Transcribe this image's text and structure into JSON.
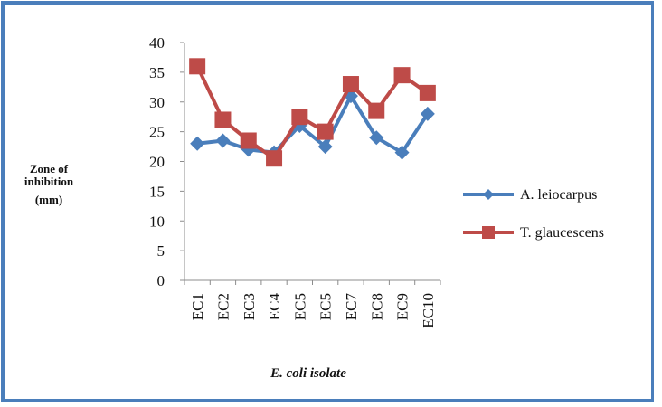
{
  "chart_data": {
    "type": "line",
    "categories": [
      "EC1",
      "EC2",
      "EC3",
      "EC4",
      "EC5",
      "EC5",
      "EC7",
      "EC8",
      "EC9",
      "EC10"
    ],
    "series": [
      {
        "name": "A. leiocarpus",
        "values": [
          23,
          23.5,
          22,
          21.5,
          26,
          22.5,
          31,
          24,
          21.5,
          28
        ],
        "color": "#4a7ebb",
        "marker": "diamond"
      },
      {
        "name": "T. glaucescens",
        "values": [
          36,
          27,
          23.5,
          20.5,
          27.5,
          25,
          33,
          28.5,
          34.5,
          31.5
        ],
        "color": "#be4b48",
        "marker": "square"
      }
    ],
    "ylim": [
      0,
      40
    ],
    "yticks": [
      0,
      5,
      10,
      15,
      20,
      25,
      30,
      35,
      40
    ],
    "ylabel_lines": [
      "Zone of",
      "inhibition",
      "(mm)"
    ],
    "xlabel": "E. coli isolate",
    "legend_position": "right",
    "grid": false,
    "title": ""
  }
}
